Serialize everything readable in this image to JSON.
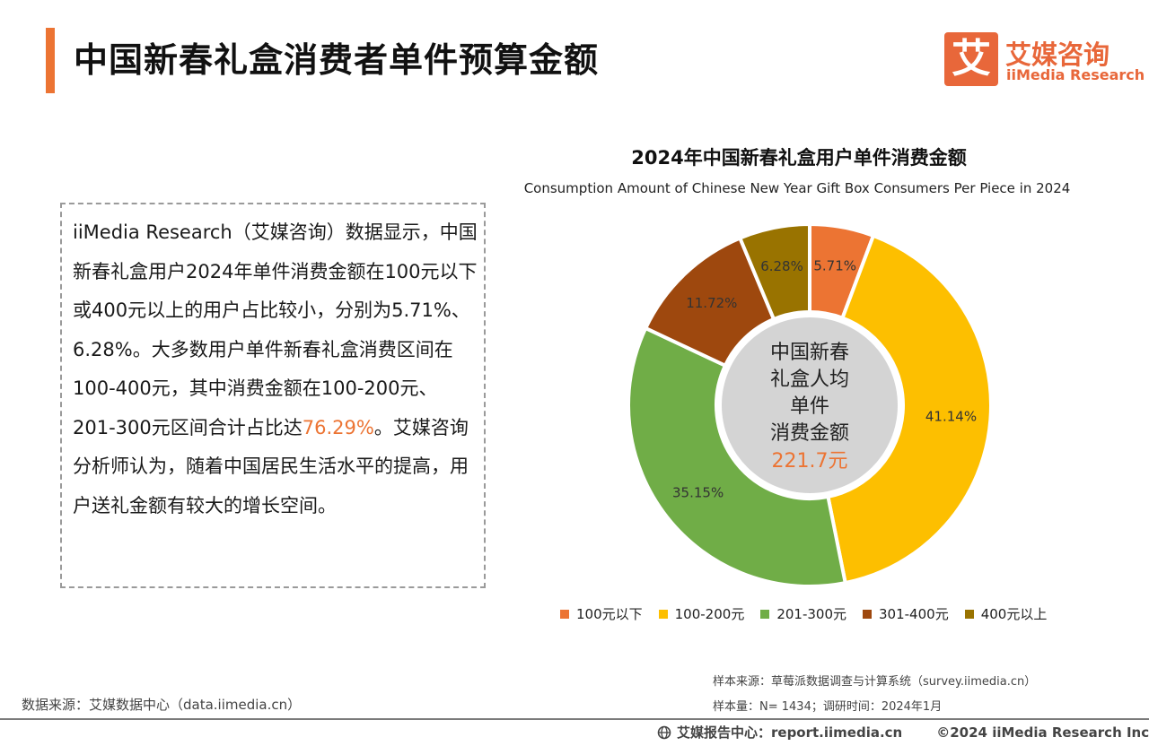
{
  "header": {
    "title": "中国新春礼盒消费者单件预算金额",
    "logo_glyph": "艾",
    "logo_cn": "艾媒咨询",
    "logo_en": "iiMedia Research",
    "accent_color": "#ec7433"
  },
  "summary": {
    "part1": "iiMedia Research（艾媒咨询）数据显示，中国新春礼盒用户2024年单件消费金额在100元以下或400元以上的用户占比较小，分别为5.71%、6.28%。大多数用户单件新春礼盒消费区间在100-400元，其中消费金额在100-200元、201-300元区间合计占比达",
    "highlight": "76.29%",
    "part2": "。艾媒咨询分析师认为，随着中国居民生活水平的提高，用户送礼金额有较大的增长空间。"
  },
  "chart_data": {
    "type": "pie",
    "title": "2024年中国新春礼盒用户单件消费金额",
    "subtitle": "Consumption Amount of Chinese New Year Gift Box Consumers Per Piece in 2024",
    "unit": "%",
    "categories": [
      "100元以下",
      "100-200元",
      "201-300元",
      "301-400元",
      "400元以上"
    ],
    "values": [
      5.71,
      41.14,
      35.15,
      11.72,
      6.28
    ],
    "data_labels": [
      "5.71%",
      "41.14%",
      "35.15%",
      "11.72%",
      "6.28%"
    ],
    "colors": [
      "#ec7433",
      "#fdbf00",
      "#70ad47",
      "#9e480e",
      "#997300"
    ],
    "donut": true,
    "center_label_lines": [
      "中国新春",
      "礼盒人均",
      "单件",
      "消费金额"
    ],
    "center_value": "221.7元",
    "legend_position": "bottom"
  },
  "sources": {
    "data_source": "数据来源：艾媒数据中心（data.iimedia.cn）",
    "sample_source": "样本来源：草莓派数据调查与计算系统（survey.iimedia.cn）",
    "sample_size": "样本量：N= 1434；调研时间：2024年1月"
  },
  "footer": {
    "report_center": "艾媒报告中心：report.iimedia.cn",
    "copyright": "©2024  iiMedia Research  Inc",
    "icon": "globe-icon"
  }
}
